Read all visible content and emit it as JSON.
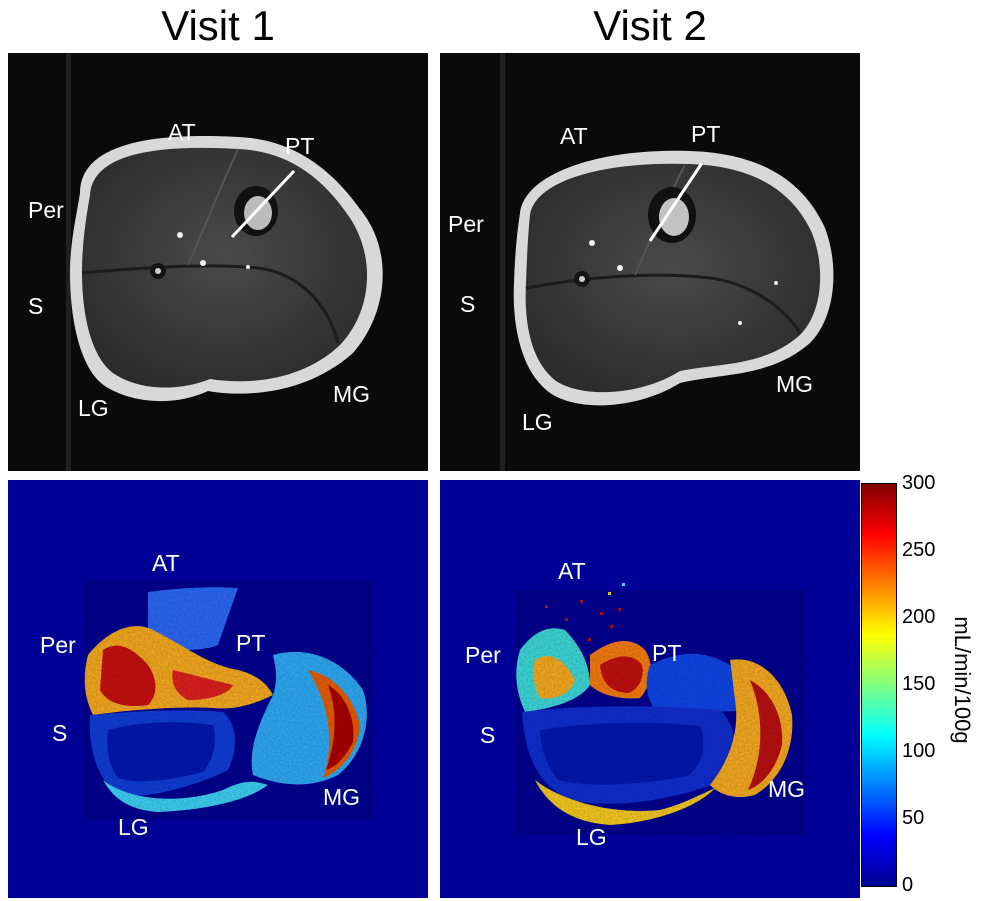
{
  "columns": [
    {
      "title": "Visit 1"
    },
    {
      "title": "Visit 2"
    }
  ],
  "labels": {
    "v1_anat": {
      "at": "AT",
      "pt": "PT",
      "per": "Per",
      "s": "S",
      "lg": "LG",
      "mg": "MG"
    },
    "v2_anat": {
      "at": "AT",
      "pt": "PT",
      "per": "Per",
      "s": "S",
      "lg": "LG",
      "mg": "MG"
    },
    "v1_perf": {
      "at": "AT",
      "pt": "PT",
      "per": "Per",
      "s": "S",
      "lg": "LG",
      "mg": "MG"
    },
    "v2_perf": {
      "at": "AT",
      "pt": "PT",
      "per": "Per",
      "s": "S",
      "lg": "LG",
      "mg": "MG"
    }
  },
  "colorbar": {
    "ticks": [
      "300",
      "250",
      "200",
      "150",
      "100",
      "50",
      "0"
    ],
    "unit": "mL/min/100g",
    "min": 0,
    "max": 300,
    "colormap": "jet"
  }
}
